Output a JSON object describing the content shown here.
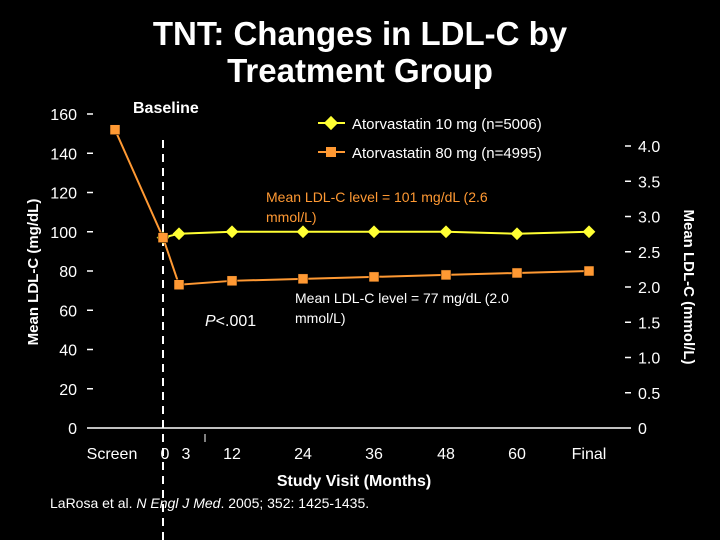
{
  "slide": {
    "title_line1": "TNT: Changes in LDL-C by",
    "title_line2": "Treatment Group",
    "citation_authors": "LaRosa et al. ",
    "citation_journal": "N Engl J Med",
    "citation_rest": ". 2005; 352: 1425-1435."
  },
  "colors": {
    "background": "#000000",
    "text": "#ffffff",
    "atorvastatin_10": "#ffff33",
    "atorvastatin_80": "#ff9933"
  },
  "chart_data": {
    "type": "line",
    "title": "TNT: Changes in LDL-C by Treatment Group",
    "xlabel": "Study Visit (Months)",
    "ylabel": "Mean LDL-C (mg/dL)",
    "y2label": "Mean LDL-C (mmol/L)",
    "categories": [
      "Screen",
      "0",
      "3",
      "12",
      "24",
      "36",
      "48",
      "60",
      "Final"
    ],
    "ylim": [
      0,
      160
    ],
    "yticks": [
      0,
      20,
      40,
      60,
      80,
      100,
      120,
      140,
      160
    ],
    "y2lim": [
      0,
      4.0
    ],
    "y2ticks": [
      "0",
      "0.5",
      "1.0",
      "1.5",
      "2.0",
      "2.5",
      "3.0",
      "3.5",
      "4.0"
    ],
    "grid": false,
    "legend_position": "top-right",
    "series": [
      {
        "name": "Atorvastatin 10 mg (n=5006)",
        "marker": "diamond",
        "x": [
          "0",
          "3",
          "12",
          "24",
          "36",
          "48",
          "60",
          "Final"
        ],
        "values": [
          97,
          99,
          100,
          100,
          100,
          100,
          99,
          100
        ]
      },
      {
        "name": "Atorvastatin 80 mg (n=4995)",
        "marker": "square",
        "x": [
          "Screen",
          "0",
          "3",
          "12",
          "24",
          "36",
          "48",
          "60",
          "Final"
        ],
        "values": [
          152,
          97,
          73,
          75,
          76,
          77,
          78,
          79,
          80
        ]
      }
    ],
    "annotations": {
      "baseline": "Baseline",
      "mean_10": "Mean LDL-C level = 101 mg/dL (2.6 mmol/L)",
      "mean_10_line1": "Mean LDL-C level = 101 mg/dL (2.6",
      "mean_10_line2": "mmol/L)",
      "mean_80_line1": "Mean LDL-C level = 77 mg/dL (2.0",
      "mean_80_line2": "mmol/L)",
      "p_value_italic": "P",
      "p_value_rest": "<.001"
    }
  }
}
